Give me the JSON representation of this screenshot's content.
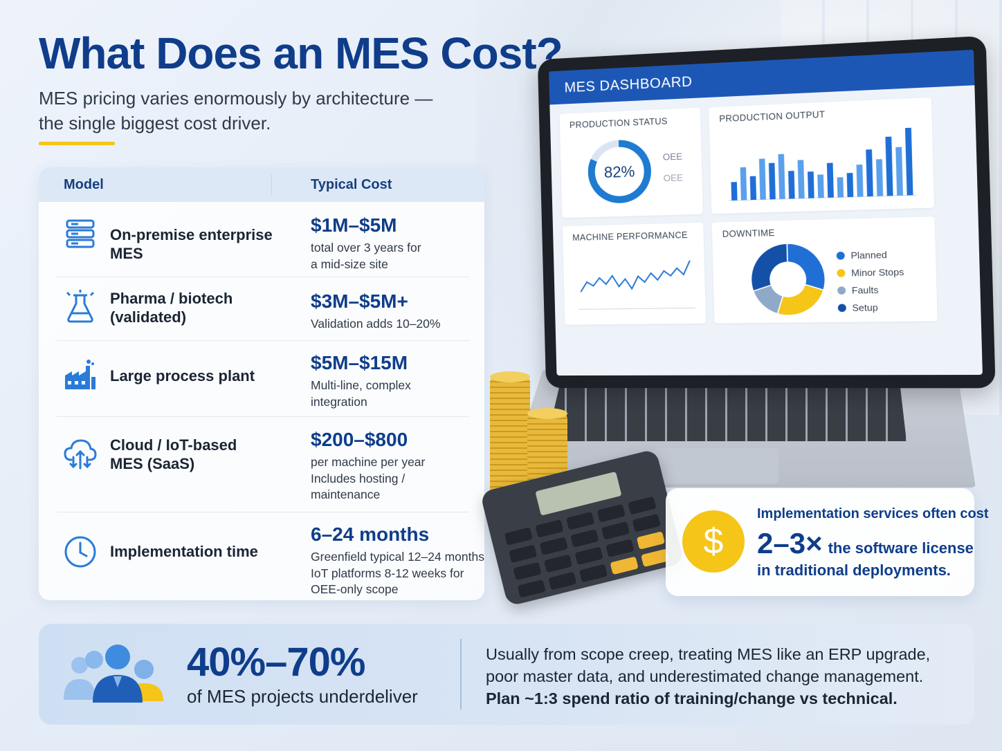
{
  "title": "What Does an MES Cost?",
  "subtitle": "MES pricing varies enormously by architecture — the single biggest cost driver.",
  "table": {
    "header_model": "Model",
    "header_cost": "Typical Cost",
    "rows": [
      {
        "icon": "server-rack-icon",
        "model": "On-premise enterprise MES",
        "cost": "$1M–$5M",
        "note_lines": [
          "total over 3 years for",
          "a mid-size site"
        ]
      },
      {
        "icon": "flask-icon",
        "model_lines": [
          "Pharma / biotech",
          "(validated)"
        ],
        "cost": "$3M–$5M+",
        "note_lines": [
          "Validation adds 10–20%"
        ]
      },
      {
        "icon": "factory-icon",
        "model": "Large process plant",
        "cost": "$5M–$15M",
        "note_lines": [
          "Multi-line, complex",
          "integration"
        ]
      },
      {
        "icon": "cloud-iot-icon",
        "model_lines": [
          "Cloud / IoT-based",
          "MES (SaaS)"
        ],
        "cost": "$200–$800",
        "note_lines": [
          "per machine per year",
          "Includes hosting /",
          "maintenance"
        ]
      },
      {
        "icon": "clock-icon",
        "model": "Implementation time",
        "cost": "6–24 months",
        "note_lines": [
          "Greenfield typical 12–24 months;",
          "IoT platforms 8-12 weeks for",
          "OEE-only scope"
        ]
      }
    ]
  },
  "dashboard": {
    "title": "MES DASHBOARD",
    "production_status": {
      "label": "PRODUCTION STATUS",
      "value": "82%",
      "fraction": 0.82,
      "side_top": "OEE",
      "side_bottom": "OEE"
    },
    "production_output": {
      "label": "PRODUCTION OUTPUT",
      "bar_values": [
        0.28,
        0.5,
        0.36,
        0.62,
        0.55,
        0.68,
        0.42,
        0.58,
        0.4,
        0.35,
        0.52,
        0.3,
        0.36,
        0.48,
        0.7,
        0.55,
        0.88,
        0.72,
        1.0
      ]
    },
    "machine_performance": {
      "label": "MACHINE PERFORMANCE",
      "line_values": [
        0.3,
        0.5,
        0.42,
        0.58,
        0.45,
        0.62,
        0.4,
        0.55,
        0.35,
        0.6,
        0.48,
        0.66,
        0.52,
        0.7,
        0.6,
        0.75,
        0.62,
        0.9
      ]
    },
    "downtime": {
      "label": "DOWNTIME",
      "legend": [
        {
          "name": "Planned",
          "color": "#1f6fd6"
        },
        {
          "name": "Minor Stops",
          "color": "#f5c518"
        },
        {
          "name": "Faults",
          "color": "#8fa9c8"
        },
        {
          "name": "Setup",
          "color": "#1550a8"
        }
      ],
      "slices": [
        0.3,
        0.25,
        0.15,
        0.3
      ]
    }
  },
  "callout": {
    "line1": "Implementation services often cost",
    "big": "2–3×",
    "line2_rest": "the software license",
    "line3": "in traditional deployments."
  },
  "bottom": {
    "pct": "40%–70%",
    "label": "of MES projects underdeliver",
    "text_normal": "Usually from scope creep, treating MES like an ERP upgrade, poor master data, and underestimated change management.",
    "text_bold": "Plan ~1:3 spend ratio of training/change vs technical."
  },
  "colors": {
    "brand_blue": "#0f3d8a",
    "accent_yellow": "#f5c518",
    "icon_blue": "#2a7bd8"
  }
}
